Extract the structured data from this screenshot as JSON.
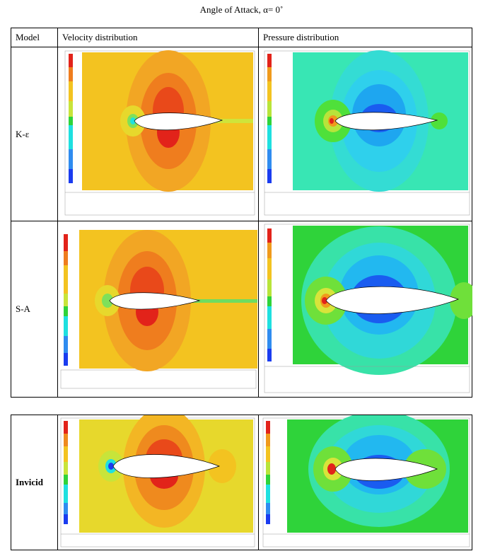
{
  "title": "Angle of Attack, α= 0˚",
  "headers": {
    "model": "Model",
    "velocity": "Velocity distribution",
    "pressure": "Pressure distribution"
  },
  "rows": [
    {
      "model": "K-ε",
      "bold": false
    },
    {
      "model": "S-A",
      "bold": false
    },
    {
      "model": "Invicid",
      "bold": true
    }
  ],
  "colors": {
    "red": "#e8231c",
    "orange": "#f08a1c",
    "yellow": "#f5c81e",
    "green": "#2fd33a",
    "cyan": "#1ee0e0",
    "blue": "#1a3cf0"
  }
}
